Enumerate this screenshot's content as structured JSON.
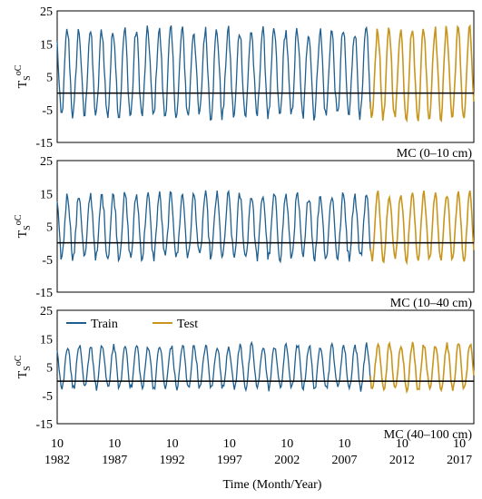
{
  "chart_data": [
    {
      "type": "line",
      "label": "MC (0–10 cm)",
      "ylabel": "T",
      "ylabel_sub": "S",
      "ylabel_sup": "oC",
      "ylim": [
        -15,
        25
      ],
      "yticks": [
        -15,
        -5,
        5,
        15,
        25
      ],
      "zero_line": true,
      "series": [
        {
          "name": "Train",
          "color": "#1f5f8f",
          "x_start": 1982.75,
          "x_end": 2010.0,
          "params": {
            "mean": 6.0,
            "amplitude": 13.0,
            "peak_month": 7.5,
            "noise": 2.0
          }
        },
        {
          "name": "Test",
          "color": "#c8961e",
          "x_start": 2010.0,
          "x_end": 2019.0,
          "params": {
            "mean": 6.0,
            "amplitude": 13.5,
            "peak_month": 7.5,
            "noise": 1.5
          }
        }
      ]
    },
    {
      "type": "line",
      "label": "MC (10–40 cm)",
      "ylabel": "T",
      "ylabel_sub": "S",
      "ylabel_sup": "oC",
      "ylim": [
        -15,
        25
      ],
      "yticks": [
        -15,
        -5,
        5,
        15,
        25
      ],
      "zero_line": true,
      "series": [
        {
          "name": "Train",
          "color": "#1f5f8f",
          "x_start": 1982.75,
          "x_end": 2010.0,
          "params": {
            "mean": 5.0,
            "amplitude": 9.5,
            "peak_month": 7.7,
            "noise": 1.6
          }
        },
        {
          "name": "Test",
          "color": "#c8961e",
          "x_start": 2010.0,
          "x_end": 2019.0,
          "params": {
            "mean": 5.0,
            "amplitude": 10.0,
            "peak_month": 7.7,
            "noise": 1.2
          }
        }
      ]
    },
    {
      "type": "line",
      "label": "MC (40–100 cm)",
      "ylabel": "T",
      "ylabel_sub": "S",
      "ylabel_sup": "oC",
      "ylim": [
        -15,
        25
      ],
      "yticks": [
        -15,
        -5,
        5,
        15,
        25
      ],
      "zero_line": true,
      "legend": {
        "placement": "top-left",
        "entries": [
          "Train",
          "Test"
        ]
      },
      "series": [
        {
          "name": "Train",
          "color": "#1f5f8f",
          "x_start": 1982.75,
          "x_end": 2010.0,
          "params": {
            "mean": 5.0,
            "amplitude": 7.5,
            "peak_month": 8.0,
            "noise": 1.2
          }
        },
        {
          "name": "Test",
          "color": "#c8961e",
          "x_start": 2010.0,
          "x_end": 2019.0,
          "params": {
            "mean": 5.0,
            "amplitude": 8.0,
            "peak_month": 8.0,
            "noise": 1.0
          }
        }
      ]
    }
  ],
  "x_axis": {
    "range": [
      1982.75,
      2019.0
    ],
    "ticks": [
      {
        "month": "10",
        "year": "1982",
        "x": 1982.75
      },
      {
        "month": "10",
        "year": "1987",
        "x": 1987.75
      },
      {
        "month": "10",
        "year": "1992",
        "x": 1992.75
      },
      {
        "month": "10",
        "year": "1997",
        "x": 1997.75
      },
      {
        "month": "10",
        "year": "2002",
        "x": 2002.75
      },
      {
        "month": "10",
        "year": "2007",
        "x": 2007.75
      },
      {
        "month": "10",
        "year": "2012",
        "x": 2012.75
      },
      {
        "month": "10",
        "year": "2017",
        "x": 2017.75
      }
    ],
    "label": "Time  (Month/Year)"
  }
}
